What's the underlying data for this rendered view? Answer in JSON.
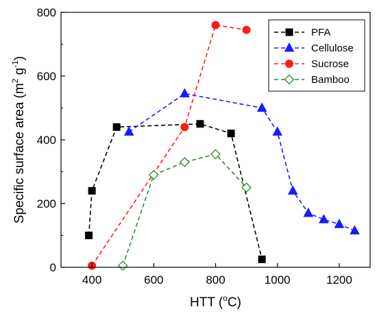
{
  "chart_data": {
    "type": "line",
    "xlabel_main": "HTT (",
    "xlabel_sup": "o",
    "xlabel_tail": "C)",
    "ylabel_parts": {
      "a": "Specific surface area (m",
      "b": "2",
      "c": " g",
      "d": "-1",
      "e": ")"
    },
    "xlim": [
      300,
      1300
    ],
    "ylim": [
      0,
      800
    ],
    "xticks": [
      400,
      600,
      800,
      1000,
      1200
    ],
    "yticks": [
      0,
      200,
      400,
      600,
      800
    ],
    "grid": false,
    "legend_position": "top-right",
    "series": [
      {
        "name": "PFA",
        "color": "#000000",
        "marker": "square",
        "filled": true,
        "x": [
          390,
          400,
          480,
          750,
          850,
          950
        ],
        "y": [
          100,
          240,
          440,
          450,
          420,
          25
        ]
      },
      {
        "name": "Cellulose",
        "color": "#1a1aff",
        "marker": "triangle",
        "filled": true,
        "x": [
          520,
          700,
          950,
          1000,
          1050,
          1100,
          1150,
          1200,
          1250
        ],
        "y": [
          425,
          545,
          500,
          425,
          240,
          170,
          150,
          135,
          115
        ]
      },
      {
        "name": "Sucrose",
        "color": "#ff1a1a",
        "marker": "circle",
        "filled": true,
        "x": [
          400,
          700,
          800,
          900
        ],
        "y": [
          5,
          440,
          760,
          745
        ]
      },
      {
        "name": "Bamboo",
        "color": "#2a8a2a",
        "marker": "diamond",
        "filled": false,
        "x": [
          500,
          600,
          700,
          800,
          900
        ],
        "y": [
          5,
          290,
          330,
          355,
          250
        ]
      }
    ]
  }
}
